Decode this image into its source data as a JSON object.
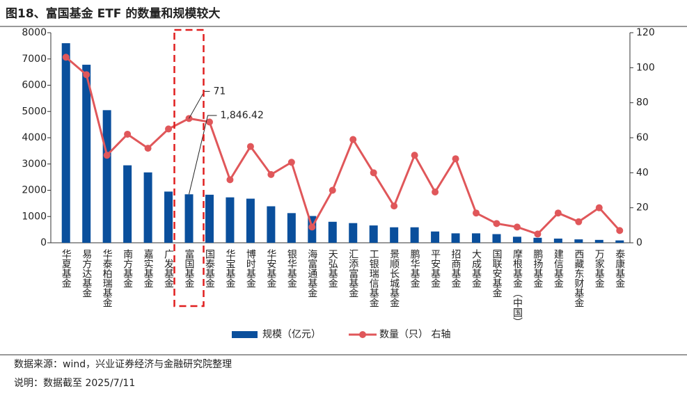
{
  "chart_data": {
    "type": "bar-line",
    "title": "图18、富国基金 ETF 的数量和规模较大",
    "categories": [
      "华夏基金",
      "易方达基金",
      "华泰柏瑞基金",
      "南方基金",
      "嘉实基金",
      "广发基金",
      "富国基金",
      "国泰基金",
      "华宝基金",
      "博时基金",
      "华安基金",
      "银华基金",
      "海富通基金",
      "天弘基金",
      "汇添富基金",
      "工银瑞信基金",
      "景顺长城基金",
      "鹏华基金",
      "平安基金",
      "招商基金",
      "大成基金",
      "国联安基金",
      "摩根基金（中国）",
      "鹏扬基金",
      "建信基金",
      "西藏东财基金",
      "万家基金",
      "泰康基金"
    ],
    "series": [
      {
        "name": "规模（亿元）",
        "color": "#0a4f9c",
        "kind": "bar",
        "values": [
          7600,
          6780,
          5050,
          2950,
          2680,
          1950,
          1846.42,
          1830,
          1730,
          1680,
          1390,
          1130,
          1020,
          800,
          750,
          660,
          590,
          590,
          430,
          360,
          360,
          330,
          230,
          190,
          160,
          130,
          110,
          90
        ],
        "value_labels": [
          null,
          null,
          null,
          null,
          null,
          null,
          "1,846.42",
          null,
          null,
          null,
          null,
          null,
          null,
          null,
          null,
          null,
          null,
          null,
          null,
          null,
          null,
          null,
          null,
          null,
          null,
          null,
          null,
          null
        ]
      },
      {
        "name": "数量（只） 右轴",
        "color": "#e0575a",
        "kind": "line",
        "axis": "y2",
        "values": [
          106,
          96,
          50,
          62,
          54,
          65,
          71,
          69,
          36,
          55,
          39,
          46,
          9,
          30,
          59,
          40,
          21,
          50,
          29,
          48,
          17,
          11,
          9,
          5,
          17,
          12,
          20,
          7
        ],
        "value_labels": [
          null,
          null,
          null,
          null,
          null,
          null,
          "71",
          null,
          null,
          null,
          null,
          null,
          null,
          null,
          null,
          null,
          null,
          null,
          null,
          null,
          null,
          null,
          null,
          null,
          null,
          null,
          null,
          null
        ]
      }
    ],
    "ylim": [
      0,
      8000
    ],
    "yticks": [
      0,
      1000,
      2000,
      3000,
      4000,
      5000,
      6000,
      7000,
      8000
    ],
    "y2lim": [
      0,
      120
    ],
    "y2ticks": [
      0,
      20,
      40,
      60,
      80,
      100,
      120
    ],
    "source": "数据来源：wind，兴业证券经济与金融研究院整理",
    "note": "说明：数据截至 2025/7/11"
  }
}
